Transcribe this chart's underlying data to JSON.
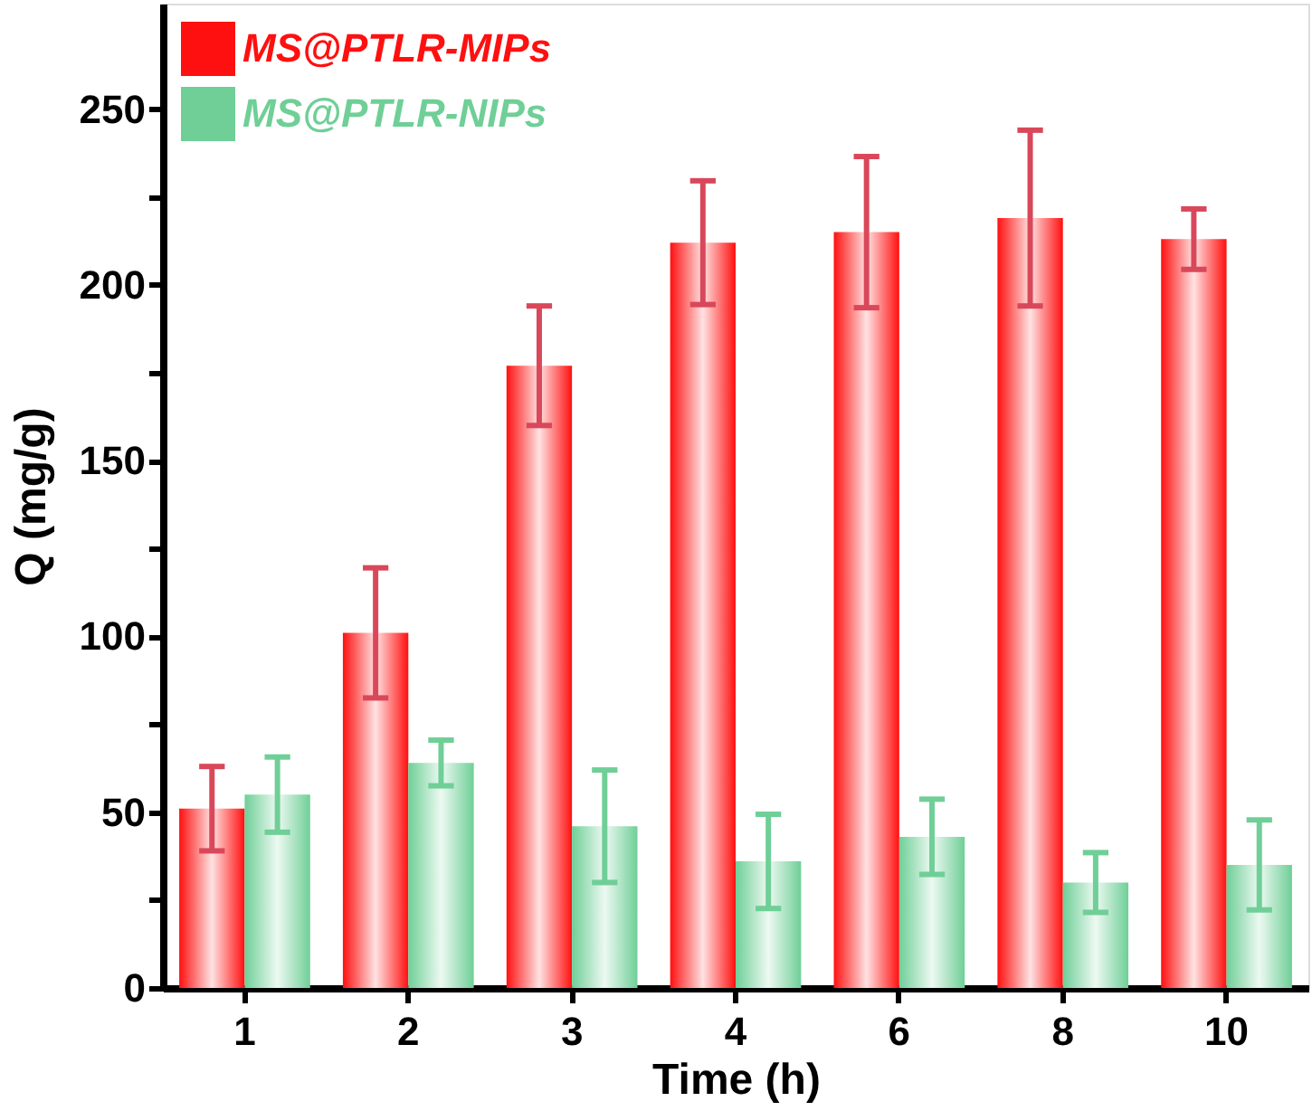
{
  "chart_data": {
    "type": "bar",
    "xlabel": "Time (h)",
    "ylabel": "Q (mg/g)",
    "categories": [
      "1",
      "2",
      "3",
      "4",
      "6",
      "8",
      "10"
    ],
    "series": [
      {
        "name": "MS@PTLR-MIPs",
        "color": "#ff1010",
        "values": [
          51,
          101,
          177,
          212,
          215,
          219,
          213
        ],
        "errors": [
          12,
          18.5,
          17,
          17.6,
          21.5,
          25,
          8.6
        ]
      },
      {
        "name": "MS@PTLR-NIPs",
        "color": "#6fcf97",
        "values": [
          55,
          64,
          46,
          36,
          43,
          30,
          35
        ],
        "errors": [
          10.7,
          6.5,
          16,
          13.4,
          10.7,
          8.5,
          12.8
        ]
      }
    ],
    "ylim": [
      0,
      280
    ],
    "yticks": [
      0,
      {
        "value": 25,
        "label": null
      },
      50,
      {
        "value": 75,
        "label": null
      },
      100,
      {
        "value": 125,
        "label": null
      },
      150,
      {
        "value": 175,
        "label": null
      },
      200,
      {
        "value": 225,
        "label": null
      },
      250
    ],
    "legend": "top left",
    "grid": false
  }
}
